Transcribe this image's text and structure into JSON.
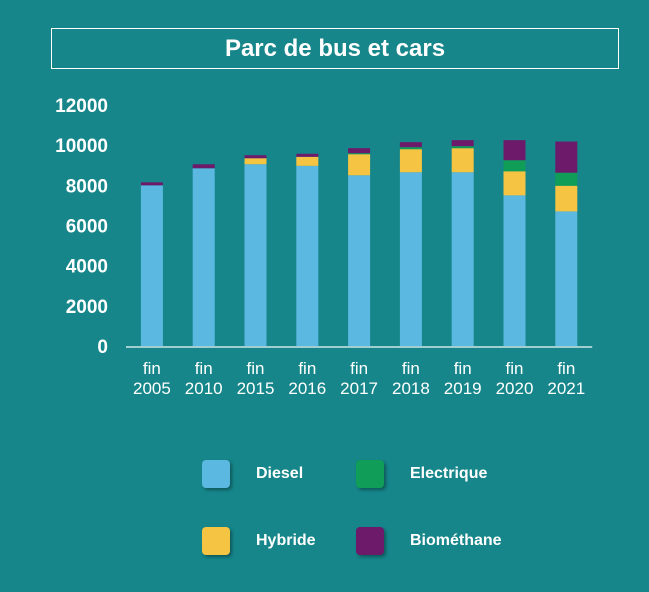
{
  "chart_data": {
    "type": "bar",
    "stacked": true,
    "title": "Parc de bus et cars",
    "categories": [
      [
        "fin",
        "2005"
      ],
      [
        "fin",
        "2010"
      ],
      [
        "fin",
        "2015"
      ],
      [
        "fin",
        "2016"
      ],
      [
        "fin",
        "2017"
      ],
      [
        "fin",
        "2018"
      ],
      [
        "fin",
        "2019"
      ],
      [
        "fin",
        "2020"
      ],
      [
        "fin",
        "2021"
      ]
    ],
    "series": [
      {
        "name": "Diesel",
        "color": "#5bb8e0",
        "values": [
          8000,
          8850,
          9050,
          8970,
          8500,
          8650,
          8650,
          7500,
          6700
        ]
      },
      {
        "name": "Hybride",
        "color": "#f6c443",
        "values": [
          0,
          0,
          300,
          450,
          1050,
          1150,
          1200,
          1200,
          1280
        ]
      },
      {
        "name": "Electrique",
        "color": "#0f9d58",
        "values": [
          0,
          0,
          0,
          0,
          50,
          100,
          100,
          550,
          650
        ]
      },
      {
        "name": "Biométhane",
        "color": "#6d1a6b",
        "values": [
          150,
          200,
          150,
          150,
          250,
          250,
          300,
          1000,
          1550
        ]
      }
    ],
    "yticks": [
      "0",
      "2000",
      "4000",
      "6000",
      "8000",
      "10000",
      "12000"
    ],
    "ylim": [
      0,
      12000
    ],
    "grid": false,
    "legend_position": "bottom"
  },
  "legend": [
    {
      "label": "Diesel",
      "color": "#5bb8e0"
    },
    {
      "label": "Electrique",
      "color": "#0f9d58"
    },
    {
      "label": "Hybride",
      "color": "#f6c443"
    },
    {
      "label": "Biométhane",
      "color": "#6d1a6b"
    }
  ]
}
